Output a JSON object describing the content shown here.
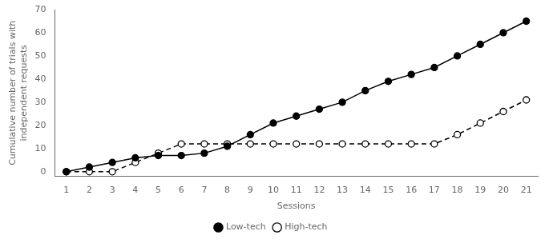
{
  "chart_data": {
    "type": "line",
    "xlabel": "Sessions",
    "ylabel": "Cumulative number of trials with\nindependent requests",
    "x": [
      1,
      2,
      3,
      4,
      5,
      6,
      7,
      8,
      9,
      10,
      11,
      12,
      13,
      14,
      15,
      16,
      17,
      18,
      19,
      20,
      21
    ],
    "series": [
      {
        "name": "Low-tech",
        "color": "#000000",
        "line_style": "solid",
        "marker": "circle",
        "values": [
          0,
          2,
          4,
          6,
          7,
          7,
          8,
          11,
          16,
          21,
          24,
          27,
          30,
          35,
          39,
          42,
          45,
          50,
          55,
          60,
          65
        ]
      },
      {
        "name": "High-tech",
        "color": "#000000",
        "line_style": "dashed",
        "marker": "open_circle",
        "values": [
          0,
          0,
          0,
          4,
          8,
          12,
          12,
          12,
          12,
          12,
          12,
          12,
          12,
          12,
          12,
          12,
          12,
          16,
          21,
          26,
          31
        ]
      }
    ],
    "xlim": [
      0.5,
      21.5
    ],
    "xticks": [
      1,
      2,
      3,
      4,
      5,
      6,
      7,
      8,
      9,
      10,
      11,
      12,
      13,
      14,
      15,
      16,
      17,
      18,
      19,
      20,
      21
    ],
    "ylim": [
      -2,
      70
    ],
    "yticks": [
      0,
      10,
      20,
      30,
      40,
      50,
      60,
      70
    ],
    "grid": false,
    "legend": "bottom"
  }
}
